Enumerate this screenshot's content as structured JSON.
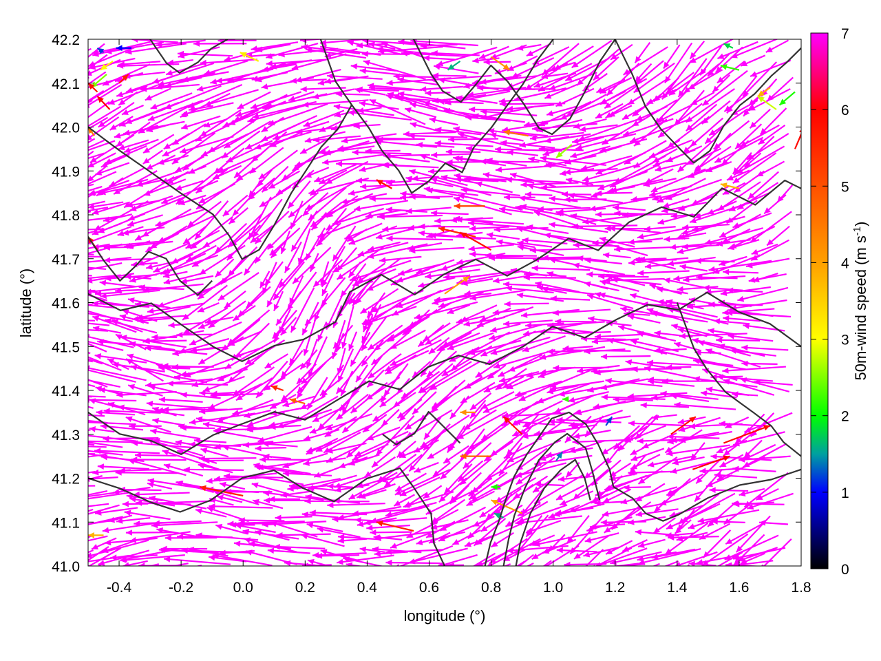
{
  "chart_data": {
    "type": "vector-field",
    "xlabel": "longitude (°)",
    "ylabel": "latitude (°)",
    "colorbar_label": "50m-wind speed (m s-1)",
    "colorbar_label_parts": {
      "main": "50m-wind speed (m s",
      "sup": "-1",
      "end": ")"
    },
    "xlim": [
      -0.5,
      1.8
    ],
    "ylim": [
      41.0,
      42.2
    ],
    "x_ticks": [
      "-0.4",
      "-0.2",
      "0.0",
      "0.2",
      "0.4",
      "0.6",
      "0.8",
      "1.0",
      "1.2",
      "1.4",
      "1.6",
      "1.8"
    ],
    "x_tick_values": [
      -0.4,
      -0.2,
      0.0,
      0.2,
      0.4,
      0.6,
      0.8,
      1.0,
      1.2,
      1.4,
      1.6,
      1.8
    ],
    "y_ticks": [
      "41.0",
      "41.1",
      "41.2",
      "41.3",
      "41.4",
      "41.5",
      "41.6",
      "41.7",
      "41.8",
      "41.9",
      "42.0",
      "42.1",
      "42.2"
    ],
    "y_tick_values": [
      41.0,
      41.1,
      41.2,
      41.3,
      41.4,
      41.5,
      41.6,
      41.7,
      41.8,
      41.9,
      42.0,
      42.1,
      42.2
    ],
    "colorbar_range": [
      0,
      7
    ],
    "colorbar_ticks": [
      "0",
      "1",
      "2",
      "3",
      "4",
      "5",
      "6",
      "7"
    ],
    "colorbar_tick_values": [
      0,
      1,
      2,
      3,
      4,
      5,
      6,
      7
    ],
    "colormap": [
      {
        "value": 0,
        "color": "#000000"
      },
      {
        "value": 1,
        "color": "#0000ff"
      },
      {
        "value": 1.5,
        "color": "#00a0a0"
      },
      {
        "value": 2,
        "color": "#00ff00"
      },
      {
        "value": 3,
        "color": "#ffff00"
      },
      {
        "value": 4,
        "color": "#ffa000"
      },
      {
        "value": 5,
        "color": "#ff5000"
      },
      {
        "value": 6,
        "color": "#ff0000"
      },
      {
        "value": 7,
        "color": "#ff00ff"
      }
    ],
    "contour_color": "#333333",
    "vectors": [
      {
        "lon": -0.45,
        "lat": 42.17,
        "dx": -0.02,
        "dy": 0.01,
        "speed": 1.2
      },
      {
        "lon": -0.36,
        "lat": 42.18,
        "dx": -0.05,
        "dy": 0.0,
        "speed": 1.0
      },
      {
        "lon": -0.42,
        "lat": 42.15,
        "dx": -0.04,
        "dy": -0.02,
        "speed": 3.0
      },
      {
        "lon": -0.44,
        "lat": 42.12,
        "dx": -0.05,
        "dy": -0.03,
        "speed": 2.5
      },
      {
        "lon": -0.47,
        "lat": 42.08,
        "dx": -0.03,
        "dy": 0.02,
        "speed": 5.8
      },
      {
        "lon": -0.43,
        "lat": 42.04,
        "dx": -0.04,
        "dy": 0.03,
        "speed": 6.0
      },
      {
        "lon": -0.4,
        "lat": 42.1,
        "dx": 0.03,
        "dy": 0.02,
        "speed": 5.6
      },
      {
        "lon": -0.48,
        "lat": 41.98,
        "dx": -0.02,
        "dy": 0.02,
        "speed": 4.5
      },
      {
        "lon": 0.05,
        "lat": 42.15,
        "dx": -0.06,
        "dy": 0.02,
        "speed": 3.2
      },
      {
        "lon": 0.7,
        "lat": 42.15,
        "dx": -0.04,
        "dy": -0.02,
        "speed": 1.6
      },
      {
        "lon": 0.8,
        "lat": 42.16,
        "dx": 0.06,
        "dy": -0.03,
        "speed": 4.2
      },
      {
        "lon": 1.58,
        "lat": 42.18,
        "dx": -0.03,
        "dy": 0.01,
        "speed": 1.8
      },
      {
        "lon": 1.6,
        "lat": 42.13,
        "dx": -0.06,
        "dy": 0.01,
        "speed": 2.2
      },
      {
        "lon": 1.7,
        "lat": 42.09,
        "dx": -0.04,
        "dy": -0.02,
        "speed": 3.8
      },
      {
        "lon": 1.78,
        "lat": 42.08,
        "dx": -0.05,
        "dy": -0.03,
        "speed": 2.1
      },
      {
        "lon": 1.72,
        "lat": 42.04,
        "dx": -0.06,
        "dy": 0.03,
        "speed": 2.8
      },
      {
        "lon": 1.78,
        "lat": 41.95,
        "dx": 0.03,
        "dy": 0.05,
        "speed": 5.9
      },
      {
        "lon": 1.6,
        "lat": 41.86,
        "dx": -0.06,
        "dy": 0.01,
        "speed": 3.8
      },
      {
        "lon": 1.06,
        "lat": 41.96,
        "dx": -0.05,
        "dy": -0.03,
        "speed": 2.6
      },
      {
        "lon": 0.92,
        "lat": 41.98,
        "dx": -0.08,
        "dy": 0.01,
        "speed": 4.5
      },
      {
        "lon": 0.78,
        "lat": 41.82,
        "dx": -0.1,
        "dy": 0.0,
        "speed": 5.2
      },
      {
        "lon": 0.75,
        "lat": 41.75,
        "dx": -0.12,
        "dy": 0.02,
        "speed": 5.5
      },
      {
        "lon": 0.8,
        "lat": 41.72,
        "dx": -0.1,
        "dy": 0.04,
        "speed": 5.8
      },
      {
        "lon": 0.65,
        "lat": 41.62,
        "dx": 0.08,
        "dy": 0.04,
        "speed": 4.0
      },
      {
        "lon": 0.48,
        "lat": 41.86,
        "dx": -0.05,
        "dy": 0.02,
        "speed": 5.8
      },
      {
        "lon": 0.13,
        "lat": 41.4,
        "dx": -0.04,
        "dy": 0.01,
        "speed": 5.5
      },
      {
        "lon": 0.2,
        "lat": 41.37,
        "dx": -0.05,
        "dy": 0.01,
        "speed": 4.8
      },
      {
        "lon": 0.75,
        "lat": 41.35,
        "dx": -0.05,
        "dy": 0.0,
        "speed": 4.2
      },
      {
        "lon": 0.9,
        "lat": 41.3,
        "dx": -0.06,
        "dy": 0.04,
        "speed": 5.8
      },
      {
        "lon": 1.05,
        "lat": 41.38,
        "dx": -0.02,
        "dy": 0.0,
        "speed": 2.2
      },
      {
        "lon": 1.17,
        "lat": 41.32,
        "dx": 0.02,
        "dy": 0.02,
        "speed": 1.2
      },
      {
        "lon": 1.01,
        "lat": 41.24,
        "dx": 0.02,
        "dy": 0.02,
        "speed": 1.4
      },
      {
        "lon": 0.8,
        "lat": 41.25,
        "dx": -0.1,
        "dy": 0.0,
        "speed": 4.8
      },
      {
        "lon": 0.83,
        "lat": 41.18,
        "dx": -0.03,
        "dy": 0.0,
        "speed": 2.1
      },
      {
        "lon": 0.84,
        "lat": 41.11,
        "dx": -0.03,
        "dy": 0.01,
        "speed": 1.6
      },
      {
        "lon": 0.9,
        "lat": 41.12,
        "dx": -0.1,
        "dy": 0.03,
        "speed": 4.0
      },
      {
        "lon": 0.55,
        "lat": 41.08,
        "dx": -0.12,
        "dy": 0.02,
        "speed": 5.6
      },
      {
        "lon": 0.0,
        "lat": 41.16,
        "dx": -0.14,
        "dy": 0.02,
        "speed": 5.6
      },
      {
        "lon": -0.45,
        "lat": 41.07,
        "dx": -0.05,
        "dy": 0.0,
        "speed": 3.8
      },
      {
        "lon": 1.45,
        "lat": 41.22,
        "dx": 0.12,
        "dy": 0.03,
        "speed": 6.0
      },
      {
        "lon": 1.55,
        "lat": 41.28,
        "dx": 0.15,
        "dy": 0.04,
        "speed": 5.9
      },
      {
        "lon": 1.38,
        "lat": 41.3,
        "dx": 0.08,
        "dy": 0.04,
        "speed": 5.8
      },
      {
        "lon": -0.47,
        "lat": 41.72,
        "dx": -0.03,
        "dy": 0.03,
        "speed": 5.8
      }
    ]
  }
}
